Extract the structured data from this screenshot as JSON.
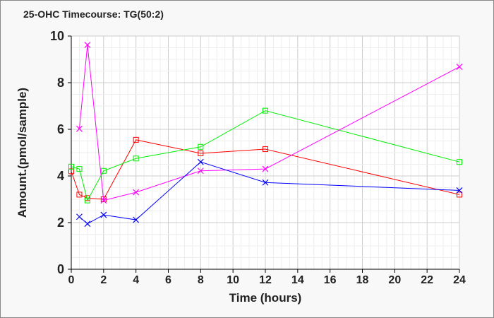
{
  "chart_data": {
    "type": "line",
    "title": "25-OHC Timecourse: TG(50:2)",
    "xlabel": "Time (hours)",
    "ylabel": "Amount.(pmol/sample)",
    "xlim": [
      0,
      24
    ],
    "ylim": [
      0,
      10
    ],
    "xticks": [
      "0",
      "2",
      "4",
      "6",
      "8",
      "10",
      "12",
      "14",
      "16",
      "18",
      "20",
      "22",
      "24"
    ],
    "yticks": [
      "0",
      "2",
      "4",
      "6",
      "8",
      "10"
    ],
    "grid": true,
    "series": [
      {
        "name": "red",
        "color": "#ff0000",
        "marker": "square",
        "x": [
          0,
          0.5,
          1,
          2,
          4,
          8,
          12,
          24
        ],
        "y": [
          4.2,
          3.2,
          3.05,
          3.0,
          5.55,
          4.97,
          5.15,
          3.2
        ]
      },
      {
        "name": "green",
        "color": "#00ee00",
        "marker": "square",
        "x": [
          0,
          0.5,
          1,
          2,
          4,
          8,
          12,
          24
        ],
        "y": [
          4.4,
          4.3,
          2.95,
          4.22,
          4.75,
          5.25,
          6.8,
          4.6
        ]
      },
      {
        "name": "magenta",
        "color": "#ff00ff",
        "marker": "x",
        "x": [
          0.5,
          1,
          2,
          4,
          8,
          12,
          24
        ],
        "y": [
          6.02,
          9.62,
          2.95,
          3.3,
          4.22,
          4.3,
          8.68
        ]
      },
      {
        "name": "blue",
        "color": "#0000ff",
        "marker": "x",
        "x": [
          0.5,
          1,
          2,
          4,
          8,
          12,
          24
        ],
        "y": [
          2.25,
          1.95,
          2.33,
          2.12,
          4.6,
          3.72,
          3.38
        ]
      }
    ]
  }
}
